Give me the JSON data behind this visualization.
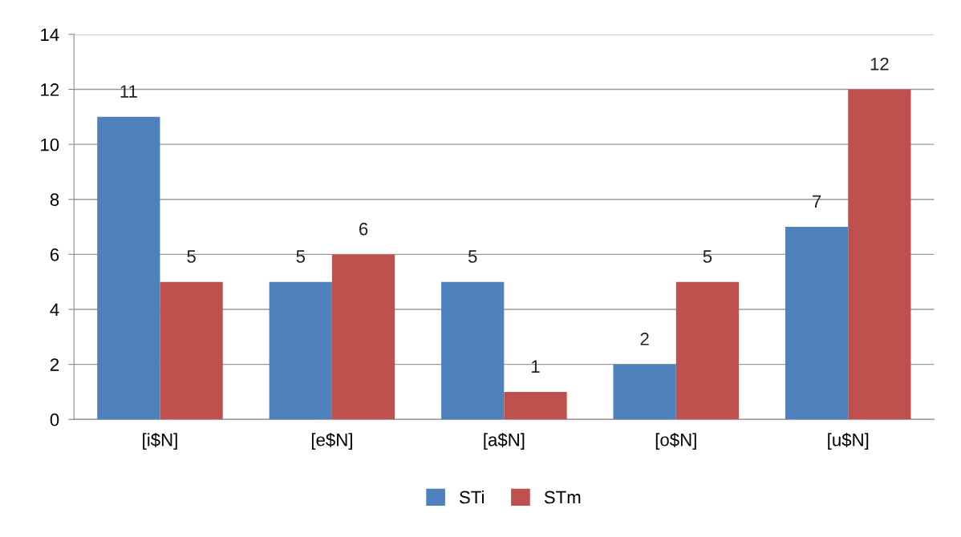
{
  "chart_data": {
    "type": "bar",
    "categories": [
      "[i$N]",
      "[e$N]",
      "[a$N]",
      "[o$N]",
      "[u$N]"
    ],
    "series": [
      {
        "name": "STi",
        "color": "#4f81bd",
        "values": [
          11,
          5,
          5,
          2,
          7
        ]
      },
      {
        "name": "STm",
        "color": "#c0504d",
        "values": [
          5,
          6,
          1,
          5,
          12
        ]
      }
    ],
    "ylim": [
      0,
      14
    ],
    "yticks": [
      0,
      2,
      4,
      6,
      8,
      10,
      12,
      14
    ],
    "grid": "y",
    "legend": "bottom",
    "data_labels": true
  }
}
